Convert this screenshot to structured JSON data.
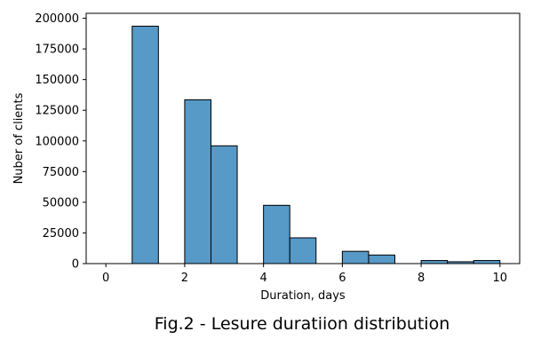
{
  "chart_data": {
    "type": "bar",
    "title": "",
    "caption": "Fig.2 - Lesure duratiion distribution",
    "xlabel": "Duration, days",
    "ylabel": "Nuber of clients",
    "xlim": [
      -0.5,
      10.5
    ],
    "ylim": [
      0,
      204000
    ],
    "xticks": [
      0,
      2,
      4,
      6,
      8,
      10
    ],
    "xtick_labels": [
      "0",
      "2",
      "4",
      "6",
      "8",
      "10"
    ],
    "yticks": [
      0,
      25000,
      50000,
      75000,
      100000,
      125000,
      150000,
      175000,
      200000
    ],
    "ytick_labels": [
      "0",
      "25000",
      "50000",
      "75000",
      "100000",
      "125000",
      "150000",
      "175000",
      "200000"
    ],
    "bin_edges": [
      0,
      0.667,
      1.333,
      2.0,
      2.667,
      3.333,
      4.0,
      4.667,
      5.333,
      6.0,
      6.667,
      7.333,
      8.0,
      8.667,
      9.333,
      10.0
    ],
    "values": [
      0,
      193500,
      0,
      133500,
      96000,
      0,
      47500,
      21000,
      0,
      10000,
      7000,
      0,
      2500,
      1500,
      2500
    ],
    "bar_color": "#5799c7",
    "edge_color": "#000000",
    "grid": false
  }
}
